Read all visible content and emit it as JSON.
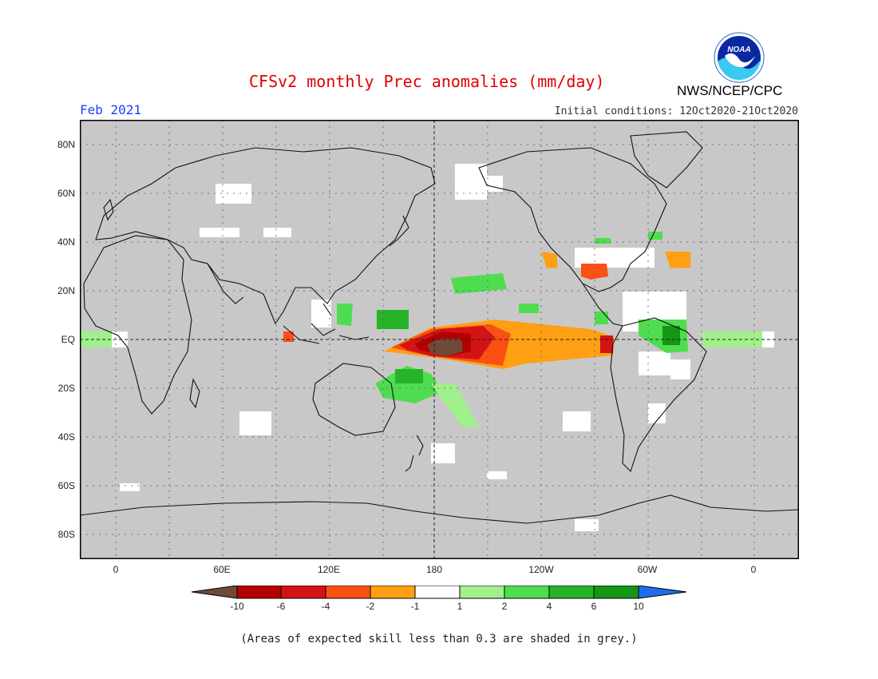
{
  "header": {
    "title": "CFSv2 monthly Prec anomalies (mm/day)",
    "month": "Feb 2021",
    "initial_conditions": "Initial conditions: 12Oct2020-21Oct2020",
    "agency": "NWS/NCEP/CPC",
    "logo_text": "NOAA"
  },
  "map": {
    "lat_labels": [
      "80N",
      "60N",
      "40N",
      "20N",
      "EQ",
      "20S",
      "40S",
      "60S",
      "80S"
    ],
    "lon_labels": [
      "0",
      "60E",
      "120E",
      "180",
      "120W",
      "60W",
      "0"
    ],
    "background_color": "#c8c8c8",
    "gridlines": "dotted"
  },
  "legend": {
    "labels": [
      "-10",
      "-6",
      "-4",
      "-2",
      "-1",
      "1",
      "2",
      "4",
      "6",
      "10"
    ],
    "colors": [
      "#6e4a38",
      "#b40000",
      "#d21414",
      "#fa5014",
      "#ffa014",
      "#ffffff",
      "#a0f08c",
      "#50dc50",
      "#28b428",
      "#149614",
      "#1e6eeb"
    ]
  },
  "footnote": "(Areas of expected skill less than 0.3 are shaded in grey.)"
}
